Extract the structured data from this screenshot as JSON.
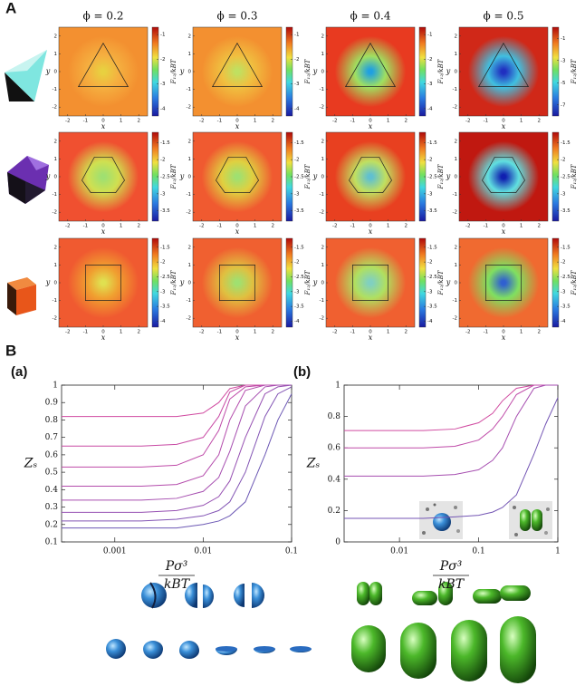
{
  "panel_labels": {
    "a": "A",
    "b": "B"
  },
  "chart_data": [
    {
      "type": "heatmap",
      "title": "ϕ = 0.2",
      "xlabel": "x",
      "ylabel": "y",
      "colorbar_label": "F₁₂/kBT",
      "xlim": [
        -2.5,
        2.5
      ],
      "ylim": [
        -2.5,
        2.5
      ],
      "xticks": [
        -2,
        -1,
        0,
        1,
        2
      ],
      "yticks": [
        -2,
        -1,
        0,
        1,
        2
      ],
      "zlim": [
        -4.3,
        -0.7
      ],
      "zticks": [
        -1,
        -2,
        -3,
        -4
      ]
    },
    {
      "type": "heatmap",
      "title": "ϕ = 0.3",
      "xlabel": "x",
      "ylabel": "y",
      "colorbar_label": "F₁₂/kBT",
      "xlim": [
        -2.5,
        2.5
      ],
      "ylim": [
        -2.5,
        2.5
      ],
      "xticks": [
        -2,
        -1,
        0,
        1,
        2
      ],
      "yticks": [
        -2,
        -1,
        0,
        1,
        2
      ],
      "zlim": [
        -4.3,
        -0.7
      ],
      "zticks": [
        -1,
        -2,
        -3,
        -4
      ]
    },
    {
      "type": "heatmap",
      "title": "ϕ = 0.4",
      "xlabel": "x",
      "ylabel": "y",
      "colorbar_label": "F₁₂/kBT",
      "xlim": [
        -2.5,
        2.5
      ],
      "ylim": [
        -2.5,
        2.5
      ],
      "xticks": [
        -2,
        -1,
        0,
        1,
        2
      ],
      "yticks": [
        -2,
        -1,
        0,
        1,
        2
      ],
      "zlim": [
        -4.3,
        -0.7
      ],
      "zticks": [
        -1,
        -2,
        -3,
        -4
      ]
    },
    {
      "type": "heatmap",
      "title": "ϕ = 0.5",
      "xlabel": "x",
      "ylabel": "y",
      "colorbar_label": "F₁₂/kBT",
      "xlim": [
        -2.5,
        2.5
      ],
      "ylim": [
        -2.5,
        2.5
      ],
      "xticks": [
        -2,
        -1,
        0,
        1,
        2
      ],
      "yticks": [
        -2,
        -1,
        0,
        1,
        2
      ],
      "zlim": [
        -8,
        0
      ],
      "zticks": [
        -1,
        -3,
        -5,
        -7
      ]
    },
    {
      "type": "heatmap",
      "xlabel": "x",
      "ylabel": "y",
      "colorbar_label": "F₁₂/kBT",
      "xlim": [
        -2.5,
        2.5
      ],
      "ylim": [
        -2.5,
        2.5
      ],
      "xticks": [
        -2,
        -1,
        0,
        1,
        2
      ],
      "yticks": [
        -2,
        -1,
        0,
        1,
        2
      ],
      "zlim": [
        -3.8,
        -1.2
      ],
      "zticks": [
        -1.5,
        -2,
        -2.5,
        -3,
        -3.5
      ]
    },
    {
      "type": "heatmap",
      "xlabel": "x",
      "ylabel": "y",
      "colorbar_label": "F₁₂/kBT",
      "xlim": [
        -2.5,
        2.5
      ],
      "ylim": [
        -2.5,
        2.5
      ],
      "xticks": [
        -2,
        -1,
        0,
        1,
        2
      ],
      "yticks": [
        -2,
        -1,
        0,
        1,
        2
      ],
      "zlim": [
        -3.8,
        -1.2
      ],
      "zticks": [
        -1.5,
        -2,
        -2.5,
        -3,
        -3.5
      ]
    },
    {
      "type": "heatmap",
      "xlabel": "x",
      "ylabel": "y",
      "colorbar_label": "F₁₂/kBT",
      "xlim": [
        -2.5,
        2.5
      ],
      "ylim": [
        -2.5,
        2.5
      ],
      "xticks": [
        -2,
        -1,
        0,
        1,
        2
      ],
      "yticks": [
        -2,
        -1,
        0,
        1,
        2
      ],
      "zlim": [
        -3.8,
        -1.2
      ],
      "zticks": [
        -1.5,
        -2,
        -2.5,
        -3,
        -3.5
      ]
    },
    {
      "type": "heatmap",
      "xlabel": "x",
      "ylabel": "y",
      "colorbar_label": "F₁₂/kBT",
      "xlim": [
        -2.5,
        2.5
      ],
      "ylim": [
        -2.5,
        2.5
      ],
      "xticks": [
        -2,
        -1,
        0,
        1,
        2
      ],
      "yticks": [
        -2,
        -1,
        0,
        1,
        2
      ],
      "zlim": [
        -3.8,
        -1.2
      ],
      "zticks": [
        -1.5,
        -2,
        -2.5,
        -3,
        -3.5
      ]
    },
    {
      "type": "heatmap",
      "xlabel": "x",
      "ylabel": "y",
      "colorbar_label": "F₁₂/kBT",
      "xlim": [
        -2.5,
        2.5
      ],
      "ylim": [
        -2.5,
        2.5
      ],
      "xticks": [
        -2,
        -1,
        0,
        1,
        2
      ],
      "yticks": [
        -2,
        -1,
        0,
        1,
        2
      ],
      "zlim": [
        -4.2,
        -1.2
      ],
      "zticks": [
        -1.5,
        -2,
        -2.5,
        -3,
        -3.5,
        -4
      ]
    },
    {
      "type": "heatmap",
      "xlabel": "x",
      "ylabel": "y",
      "colorbar_label": "F₁₂/kBT",
      "xlim": [
        -2.5,
        2.5
      ],
      "ylim": [
        -2.5,
        2.5
      ],
      "xticks": [
        -2,
        -1,
        0,
        1,
        2
      ],
      "yticks": [
        -2,
        -1,
        0,
        1,
        2
      ],
      "zlim": [
        -4.2,
        -1.2
      ],
      "zticks": [
        -1.5,
        -2,
        -2.5,
        -3,
        -3.5,
        -4
      ]
    },
    {
      "type": "heatmap",
      "xlabel": "x",
      "ylabel": "y",
      "colorbar_label": "F₁₂/kBT",
      "xlim": [
        -2.5,
        2.5
      ],
      "ylim": [
        -2.5,
        2.5
      ],
      "xticks": [
        -2,
        -1,
        0,
        1,
        2
      ],
      "yticks": [
        -2,
        -1,
        0,
        1,
        2
      ],
      "zlim": [
        -4.2,
        -1.2
      ],
      "zticks": [
        -1.5,
        -2,
        -2.5,
        -3,
        -3.5,
        -4
      ]
    },
    {
      "type": "heatmap",
      "xlabel": "x",
      "ylabel": "y",
      "colorbar_label": "F₁₂/kBT",
      "xlim": [
        -2.5,
        2.5
      ],
      "ylim": [
        -2.5,
        2.5
      ],
      "xticks": [
        -2,
        -1,
        0,
        1,
        2
      ],
      "yticks": [
        -2,
        -1,
        0,
        1,
        2
      ],
      "zlim": [
        -4.2,
        -1.2
      ],
      "zticks": [
        -1.5,
        -2,
        -2.5,
        -3,
        -3.5,
        -4
      ]
    },
    {
      "type": "line",
      "title": "(a)",
      "xscale": "log",
      "ylabel": "Zₛ",
      "xlabel": {
        "numerator": "Pσ³",
        "denominator": "kBT"
      },
      "xlim": [
        0.00025,
        0.1
      ],
      "xticks": [
        0.001,
        0.01,
        0.1
      ],
      "ylim": [
        0.1,
        1
      ],
      "yticks": [
        0.1,
        0.2,
        0.3,
        0.4,
        0.5,
        0.6,
        0.7,
        0.8,
        0.9,
        1
      ],
      "x": [
        0.00025,
        0.0005,
        0.001,
        0.002,
        0.005,
        0.01,
        0.015,
        0.02,
        0.03,
        0.05,
        0.07,
        0.1
      ],
      "series": [
        {
          "color": "#d04aa0",
          "values": [
            0.82,
            0.82,
            0.82,
            0.82,
            0.82,
            0.84,
            0.9,
            0.98,
            1,
            1,
            1,
            1
          ]
        },
        {
          "color": "#c84aa4",
          "values": [
            0.65,
            0.65,
            0.65,
            0.65,
            0.66,
            0.7,
            0.82,
            0.96,
            1,
            1,
            1,
            1
          ]
        },
        {
          "color": "#bf4aa8",
          "values": [
            0.53,
            0.53,
            0.53,
            0.53,
            0.54,
            0.6,
            0.74,
            0.92,
            0.99,
            1,
            1,
            1
          ]
        },
        {
          "color": "#b44cac",
          "values": [
            0.42,
            0.42,
            0.42,
            0.42,
            0.43,
            0.48,
            0.6,
            0.8,
            0.97,
            1,
            1,
            1
          ]
        },
        {
          "color": "#a64eb0",
          "values": [
            0.34,
            0.34,
            0.34,
            0.34,
            0.35,
            0.39,
            0.47,
            0.62,
            0.88,
            0.99,
            1,
            1
          ]
        },
        {
          "color": "#9650b2",
          "values": [
            0.27,
            0.27,
            0.27,
            0.27,
            0.28,
            0.31,
            0.36,
            0.45,
            0.7,
            0.95,
            0.99,
            1
          ]
        },
        {
          "color": "#8254b4",
          "values": [
            0.22,
            0.22,
            0.22,
            0.22,
            0.23,
            0.25,
            0.28,
            0.33,
            0.5,
            0.82,
            0.95,
            0.99
          ]
        },
        {
          "color": "#6c58b4",
          "values": [
            0.18,
            0.18,
            0.18,
            0.18,
            0.18,
            0.2,
            0.22,
            0.25,
            0.33,
            0.6,
            0.8,
            0.95
          ]
        }
      ]
    },
    {
      "type": "line",
      "title": "(b)",
      "xscale": "log",
      "ylabel": "Zₛ",
      "xlabel": {
        "numerator": "Pσ³",
        "denominator": "kBT"
      },
      "xlim": [
        0.002,
        1
      ],
      "xticks": [
        0.01,
        0.1,
        1
      ],
      "ylim": [
        0,
        1
      ],
      "yticks": [
        0,
        0.2,
        0.4,
        0.6,
        0.8,
        1
      ],
      "x": [
        0.002,
        0.005,
        0.01,
        0.02,
        0.05,
        0.1,
        0.15,
        0.2,
        0.3,
        0.5,
        0.7,
        1
      ],
      "series": [
        {
          "color": "#d04aa0",
          "values": [
            0.71,
            0.71,
            0.71,
            0.71,
            0.72,
            0.76,
            0.82,
            0.9,
            0.98,
            1,
            1,
            1
          ]
        },
        {
          "color": "#bf4aa8",
          "values": [
            0.6,
            0.6,
            0.6,
            0.6,
            0.61,
            0.65,
            0.72,
            0.8,
            0.94,
            1,
            1,
            1
          ]
        },
        {
          "color": "#a64eb0",
          "values": [
            0.42,
            0.42,
            0.42,
            0.42,
            0.43,
            0.46,
            0.52,
            0.6,
            0.8,
            0.98,
            1,
            1
          ]
        },
        {
          "color": "#7456b4",
          "values": [
            0.15,
            0.15,
            0.15,
            0.15,
            0.16,
            0.17,
            0.19,
            0.22,
            0.3,
            0.56,
            0.75,
            0.92
          ]
        }
      ]
    }
  ]
}
